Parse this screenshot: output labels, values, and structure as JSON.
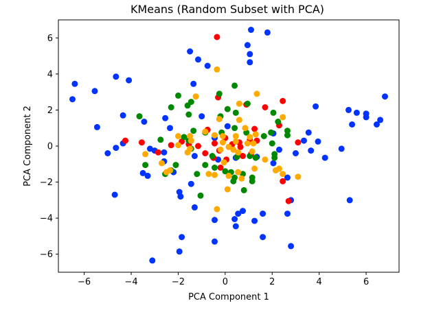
{
  "chart_data": {
    "type": "scatter",
    "title": "KMeans (Random Subset with PCA)",
    "xlabel": "PCA Component 1",
    "ylabel": "PCA Component 2",
    "xlim": [
      -7.1,
      7.4
    ],
    "ylim": [
      -7.0,
      7.0
    ],
    "xticks": [
      -6,
      -4,
      -2,
      0,
      2,
      4,
      6
    ],
    "yticks": [
      -6,
      -4,
      -2,
      0,
      2,
      4,
      6
    ],
    "tick_labels_x": [
      "−6",
      "−4",
      "−2",
      "0",
      "2",
      "4",
      "6"
    ],
    "tick_labels_y": [
      "−6",
      "−4",
      "−2",
      "0",
      "2",
      "4",
      "6"
    ],
    "grid": false,
    "legend": "none",
    "series": [
      {
        "color": "#0033ff",
        "points": [
          [
            1.1,
            6.45
          ],
          [
            1.8,
            6.3
          ],
          [
            0.95,
            5.6
          ],
          [
            1.05,
            5.1
          ],
          [
            1.05,
            4.65
          ],
          [
            -1.5,
            5.25
          ],
          [
            -1.15,
            4.8
          ],
          [
            -0.75,
            4.45
          ],
          [
            -4.65,
            3.85
          ],
          [
            -4.1,
            3.65
          ],
          [
            -6.4,
            3.45
          ],
          [
            -5.55,
            3.05
          ],
          [
            -1.35,
            3.45
          ],
          [
            -6.5,
            2.6
          ],
          [
            6.8,
            2.75
          ],
          [
            -2.55,
            1.55
          ],
          [
            -2.35,
            1.0
          ],
          [
            -3.45,
            1.35
          ],
          [
            -4.35,
            1.7
          ],
          [
            -5.45,
            1.05
          ],
          [
            -4.35,
            0.15
          ],
          [
            -4.65,
            -0.1
          ],
          [
            -5.0,
            -0.4
          ],
          [
            -3.2,
            -0.15
          ],
          [
            -3.0,
            -0.25
          ],
          [
            -2.6,
            -0.35
          ],
          [
            -2.6,
            -0.85
          ],
          [
            -2.2,
            -1.45
          ],
          [
            -3.5,
            -1.5
          ],
          [
            -3.3,
            -1.65
          ],
          [
            -4.7,
            -2.7
          ],
          [
            -1.95,
            -2.55
          ],
          [
            -1.9,
            -2.8
          ],
          [
            -1.3,
            -3.4
          ],
          [
            -1.45,
            -2.1
          ],
          [
            -0.45,
            -4.1
          ],
          [
            0.55,
            -3.75
          ],
          [
            0.4,
            -4.05
          ],
          [
            0.45,
            -4.45
          ],
          [
            0.75,
            -3.6
          ],
          [
            1.25,
            -4.15
          ],
          [
            1.6,
            -3.75
          ],
          [
            2.8,
            -3.0
          ],
          [
            2.65,
            -3.75
          ],
          [
            -1.85,
            -5.05
          ],
          [
            -1.95,
            -5.85
          ],
          [
            -0.45,
            -5.3
          ],
          [
            1.6,
            -5.05
          ],
          [
            2.8,
            -5.55
          ],
          [
            -3.1,
            -6.35
          ],
          [
            3.85,
            2.2
          ],
          [
            5.25,
            2.0
          ],
          [
            5.6,
            1.85
          ],
          [
            6.0,
            1.8
          ],
          [
            6.0,
            1.6
          ],
          [
            6.6,
            1.45
          ],
          [
            6.45,
            1.2
          ],
          [
            5.4,
            1.2
          ],
          [
            3.55,
            0.75
          ],
          [
            3.35,
            0.3
          ],
          [
            3.95,
            0.25
          ],
          [
            3.65,
            -0.25
          ],
          [
            4.25,
            -0.65
          ],
          [
            4.95,
            -0.15
          ],
          [
            3.0,
            -0.4
          ],
          [
            2.05,
            -0.95
          ],
          [
            2.65,
            -1.75
          ],
          [
            5.3,
            -3.0
          ],
          [
            0.1,
            1.1
          ],
          [
            -0.45,
            0.45
          ],
          [
            1.35,
            -0.6
          ],
          [
            -1.0,
            1.65
          ],
          [
            0.45,
            -0.65
          ],
          [
            -0.3,
            -0.75
          ],
          [
            2.3,
            -0.2
          ],
          [
            2.05,
            0.7
          ],
          [
            -1.3,
            -0.55
          ]
        ]
      },
      {
        "color": "#ff0000",
        "points": [
          [
            -0.35,
            6.05
          ],
          [
            -0.3,
            2.7
          ],
          [
            2.45,
            2.5
          ],
          [
            1.7,
            2.15
          ],
          [
            0.9,
            2.3
          ],
          [
            2.3,
            1.15
          ],
          [
            1.25,
            0.95
          ],
          [
            -0.75,
            0.9
          ],
          [
            -4.25,
            0.3
          ],
          [
            -3.55,
            0.2
          ],
          [
            -2.85,
            -0.35
          ],
          [
            -2.3,
            0.05
          ],
          [
            -1.85,
            0.25
          ],
          [
            -1.55,
            0.1
          ],
          [
            -1.15,
            0.0
          ],
          [
            -0.85,
            -0.4
          ],
          [
            -0.45,
            0.15
          ],
          [
            -0.25,
            -0.25
          ],
          [
            0.0,
            0.45
          ],
          [
            0.3,
            0.1
          ],
          [
            0.65,
            -0.05
          ],
          [
            0.75,
            -0.55
          ],
          [
            1.1,
            -0.45
          ],
          [
            1.35,
            0.3
          ],
          [
            1.05,
            0.35
          ],
          [
            -0.2,
            -1.2
          ],
          [
            0.05,
            -0.75
          ],
          [
            2.45,
            -1.95
          ],
          [
            2.7,
            -3.05
          ],
          [
            3.1,
            0.2
          ],
          [
            -0.5,
            -0.65
          ],
          [
            0.6,
            0.2
          ]
        ]
      },
      {
        "color": "#008800",
        "points": [
          [
            0.4,
            3.35
          ],
          [
            -0.25,
            2.9
          ],
          [
            -2.0,
            2.8
          ],
          [
            -1.45,
            2.45
          ],
          [
            -1.6,
            2.25
          ],
          [
            -2.3,
            2.15
          ],
          [
            0.95,
            2.35
          ],
          [
            0.1,
            2.05
          ],
          [
            -0.2,
            1.65
          ],
          [
            0.45,
            1.85
          ],
          [
            -1.55,
            1.75
          ],
          [
            -3.65,
            1.65
          ],
          [
            2.05,
            1.85
          ],
          [
            2.25,
            1.35
          ],
          [
            0.4,
            1.0
          ],
          [
            -1.35,
            0.85
          ],
          [
            -0.85,
            0.75
          ],
          [
            -1.75,
            0.5
          ],
          [
            -2.75,
            0.35
          ],
          [
            -1.55,
            0.3
          ],
          [
            -1.45,
            -0.15
          ],
          [
            -0.15,
            0.75
          ],
          [
            0.9,
            0.75
          ],
          [
            1.65,
            0.55
          ],
          [
            1.95,
            0.75
          ],
          [
            2.65,
            0.6
          ],
          [
            2.65,
            0.85
          ],
          [
            2.0,
            0.15
          ],
          [
            1.05,
            -0.55
          ],
          [
            1.3,
            -0.65
          ],
          [
            2.1,
            -0.65
          ],
          [
            2.1,
            -0.45
          ],
          [
            -0.85,
            -1.05
          ],
          [
            -0.45,
            -1.2
          ],
          [
            0.0,
            -1.4
          ],
          [
            0.25,
            -1.45
          ],
          [
            0.4,
            -1.75
          ],
          [
            0.35,
            -1.95
          ],
          [
            0.75,
            -1.55
          ],
          [
            1.15,
            -1.75
          ],
          [
            1.15,
            -1.95
          ],
          [
            -3.4,
            -1.05
          ],
          [
            -2.1,
            -1.05
          ],
          [
            -2.3,
            -1.35
          ],
          [
            -2.55,
            -1.55
          ],
          [
            -1.2,
            -1.55
          ],
          [
            0.8,
            -2.45
          ],
          [
            -1.05,
            -2.75
          ],
          [
            -0.55,
            -0.55
          ],
          [
            0.5,
            -0.6
          ]
        ]
      },
      {
        "color": "#ffaa00",
        "points": [
          [
            -0.35,
            4.25
          ],
          [
            1.35,
            2.9
          ],
          [
            -1.25,
            2.75
          ],
          [
            0.6,
            2.35
          ],
          [
            2.45,
            1.6
          ],
          [
            -0.25,
            1.5
          ],
          [
            0.6,
            1.45
          ],
          [
            0.85,
            1.0
          ],
          [
            1.3,
            0.65
          ],
          [
            1.05,
            0.5
          ],
          [
            1.2,
            0.15
          ],
          [
            -0.85,
            0.8
          ],
          [
            -0.45,
            0.6
          ],
          [
            -0.1,
            0.55
          ],
          [
            0.45,
            0.55
          ],
          [
            -2.0,
            0.55
          ],
          [
            -1.5,
            0.55
          ],
          [
            -1.45,
            0.3
          ],
          [
            -1.5,
            -0.15
          ],
          [
            -1.6,
            -0.35
          ],
          [
            -2.0,
            0.05
          ],
          [
            -3.4,
            -0.45
          ],
          [
            -2.7,
            -0.95
          ],
          [
            -2.5,
            -1.45
          ],
          [
            -2.35,
            -1.35
          ],
          [
            -0.1,
            0.2
          ],
          [
            0.15,
            -0.05
          ],
          [
            0.35,
            -0.2
          ],
          [
            0.45,
            0.25
          ],
          [
            0.95,
            0.15
          ],
          [
            1.15,
            -0.3
          ],
          [
            0.55,
            -0.35
          ],
          [
            -0.2,
            -0.2
          ],
          [
            -0.05,
            -0.9
          ],
          [
            -0.7,
            -1.55
          ],
          [
            -0.45,
            -1.6
          ],
          [
            0.15,
            -1.65
          ],
          [
            0.55,
            -1.45
          ],
          [
            1.25,
            -1.25
          ],
          [
            1.7,
            -0.75
          ],
          [
            2.3,
            -1.25
          ],
          [
            2.15,
            -1.35
          ],
          [
            2.45,
            -1.55
          ],
          [
            3.1,
            -1.7
          ],
          [
            0.1,
            -2.4
          ],
          [
            -0.35,
            -3.5
          ],
          [
            0.7,
            -1.8
          ]
        ]
      }
    ]
  }
}
